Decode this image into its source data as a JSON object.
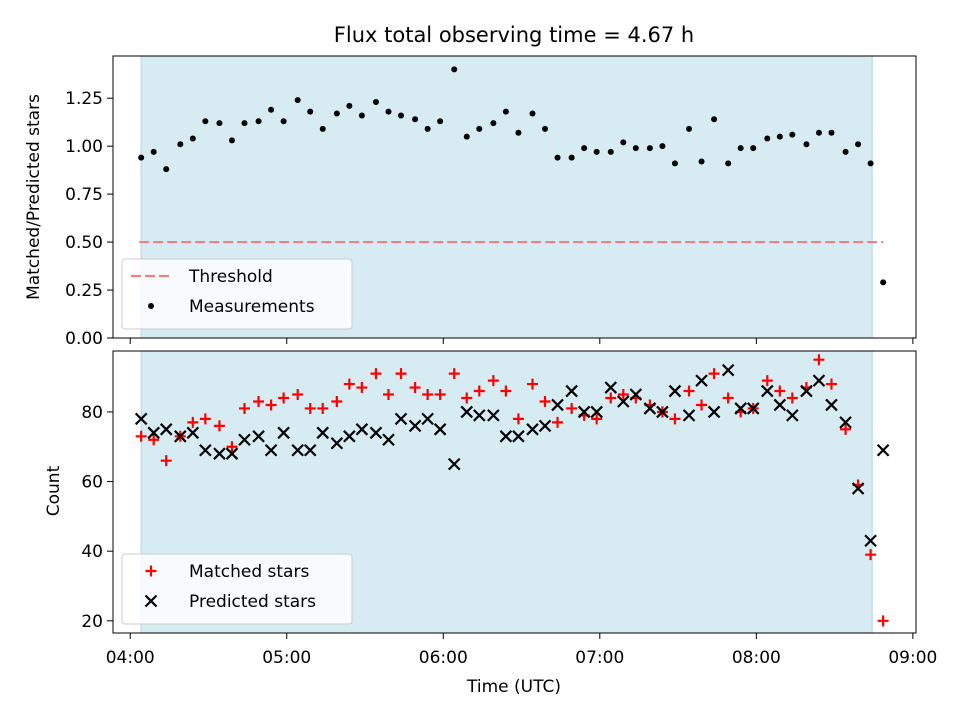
{
  "chart_data": {
    "title": "Flux total observing time = 4.67 h",
    "xlabel": "Time (UTC)",
    "x_unit": "hours UTC",
    "xlim": [
      3.89,
      9.02
    ],
    "xticks": [
      {
        "value": 4.0,
        "label": "04:00"
      },
      {
        "value": 5.0,
        "label": "05:00"
      },
      {
        "value": 6.0,
        "label": "06:00"
      },
      {
        "value": 7.0,
        "label": "07:00"
      },
      {
        "value": 8.0,
        "label": "08:00"
      },
      {
        "value": 9.0,
        "label": "09:00"
      }
    ],
    "observing_window": [
      4.07,
      8.74
    ],
    "colors": {
      "shade": "#add8e6",
      "threshold": "#f08080",
      "matched": "#ff0000",
      "predicted": "#000000"
    },
    "x": [
      4.07,
      4.15,
      4.23,
      4.32,
      4.4,
      4.48,
      4.57,
      4.65,
      4.73,
      4.82,
      4.9,
      4.98,
      5.07,
      5.15,
      5.23,
      5.32,
      5.4,
      5.48,
      5.57,
      5.65,
      5.73,
      5.82,
      5.9,
      5.98,
      6.07,
      6.15,
      6.23,
      6.32,
      6.4,
      6.48,
      6.57,
      6.65,
      6.73,
      6.82,
      6.9,
      6.98,
      7.07,
      7.15,
      7.23,
      7.32,
      7.4,
      7.48,
      7.57,
      7.65,
      7.73,
      7.82,
      7.9,
      7.98,
      8.07,
      8.15,
      8.23,
      8.32,
      8.4,
      8.48,
      8.57,
      8.65,
      8.73,
      8.81
    ],
    "panels": [
      {
        "type": "scatter",
        "ylabel": "Matched/Predicted stars",
        "ylim": [
          0.0,
          1.47
        ],
        "yticks": [
          0.0,
          0.25,
          0.5,
          0.75,
          1.0,
          1.25
        ],
        "threshold": {
          "value": 0.5,
          "name": "Threshold"
        },
        "legend_position": "lower-left",
        "series": [
          {
            "name": "Measurements",
            "values": [
              0.94,
              0.97,
              0.88,
              1.01,
              1.04,
              1.13,
              1.12,
              1.03,
              1.12,
              1.13,
              1.19,
              1.13,
              1.24,
              1.18,
              1.09,
              1.17,
              1.21,
              1.16,
              1.23,
              1.18,
              1.16,
              1.14,
              1.09,
              1.13,
              1.4,
              1.05,
              1.09,
              1.12,
              1.18,
              1.07,
              1.17,
              1.09,
              0.94,
              0.94,
              0.99,
              0.97,
              0.97,
              1.02,
              0.99,
              0.99,
              1.0,
              0.91,
              1.09,
              0.92,
              1.14,
              0.91,
              0.99,
              0.99,
              1.04,
              1.05,
              1.06,
              1.01,
              1.07,
              1.07,
              0.97,
              1.01,
              0.91,
              0.29
            ]
          }
        ]
      },
      {
        "type": "scatter",
        "ylabel": "Count",
        "ylim": [
          16.5,
          97.5
        ],
        "yticks": [
          20,
          40,
          60,
          80
        ],
        "legend_position": "lower-left",
        "series": [
          {
            "name": "Matched stars",
            "marker": "plus",
            "values": [
              73,
              72,
              66,
              73,
              77,
              78,
              76,
              70,
              81,
              83,
              82,
              84,
              85,
              81,
              81,
              83,
              88,
              87,
              91,
              85,
              91,
              87,
              85,
              85,
              91,
              84,
              86,
              89,
              86,
              78,
              88,
              83,
              77,
              81,
              79,
              78,
              84,
              85,
              84,
              82,
              80,
              78,
              86,
              82,
              91,
              84,
              80,
              81,
              89,
              86,
              84,
              87,
              95,
              88,
              75,
              59,
              39,
              20
            ]
          },
          {
            "name": "Predicted stars",
            "marker": "x",
            "values": [
              78,
              74,
              75,
              73,
              74,
              69,
              68,
              68,
              72,
              73,
              69,
              74,
              69,
              69,
              74,
              71,
              73,
              75,
              74,
              72,
              78,
              76,
              78,
              75,
              65,
              80,
              79,
              79,
              73,
              73,
              75,
              76,
              82,
              86,
              80,
              80,
              87,
              83,
              85,
              81,
              80,
              86,
              79,
              89,
              80,
              92,
              81,
              81,
              86,
              82,
              79,
              86,
              89,
              82,
              77,
              58,
              43,
              69
            ]
          }
        ]
      }
    ]
  }
}
